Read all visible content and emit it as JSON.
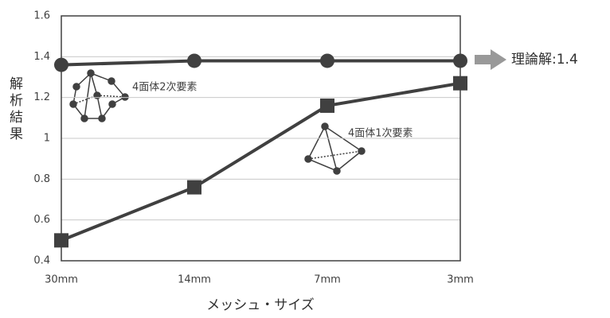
{
  "chart_data": {
    "type": "line",
    "y_label": "解析結果",
    "x_label": "メッシュ・サイズ",
    "annotation": "理論解:1.4",
    "categories": [
      "30mm",
      "14mm",
      "7mm",
      "3mm"
    ],
    "series": [
      {
        "name": "4面体2次要素",
        "color": "#404040",
        "marker": "circle",
        "values": [
          1.36,
          1.38,
          1.38,
          1.38
        ]
      },
      {
        "name": "4面体1次要素",
        "color": "#404040",
        "marker": "square",
        "values": [
          0.5,
          0.76,
          1.16,
          1.27
        ]
      }
    ],
    "ylim": [
      0.4,
      1.6
    ],
    "yticks": [
      0.4,
      0.6,
      0.8,
      1,
      1.2,
      1.4,
      1.6
    ],
    "grid": true
  }
}
